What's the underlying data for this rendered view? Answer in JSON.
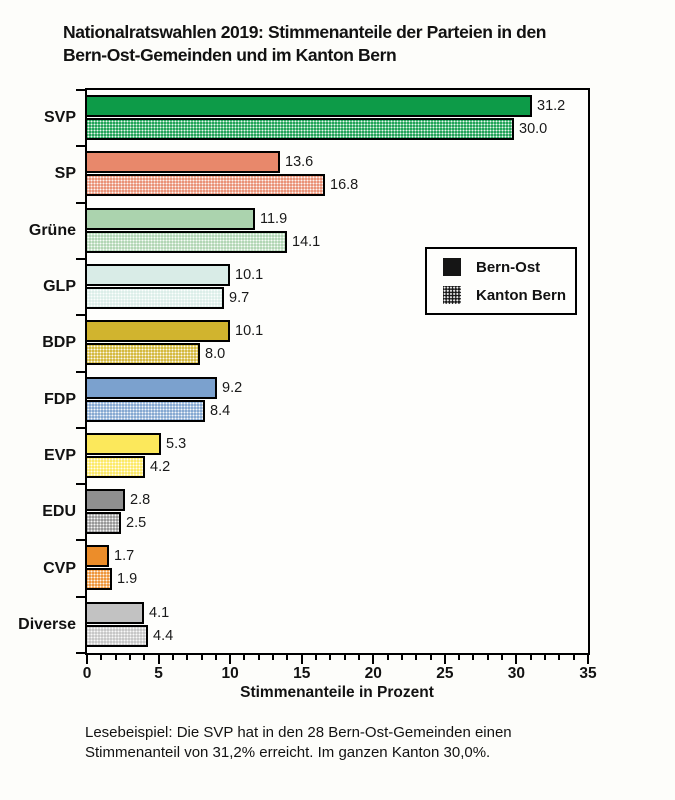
{
  "title_lines": [
    "Nationalratswahlen 2019: Stimmenanteile der Parteien in den",
    "Bern-Ost-Gemeinden und im Kanton Bern"
  ],
  "chart_data": {
    "type": "bar",
    "orientation": "horizontal",
    "title": "Nationalratswahlen 2019: Stimmenanteile der Parteien in den Bern-Ost-Gemeinden und im Kanton Bern",
    "categories": [
      "SVP",
      "SP",
      "Grüne",
      "GLP",
      "BDP",
      "FDP",
      "EVP",
      "EDU",
      "CVP",
      "Diverse"
    ],
    "series": [
      {
        "name": "Bern-Ost",
        "style": "solid",
        "values": [
          31.2,
          13.6,
          11.9,
          10.1,
          10.1,
          9.2,
          5.3,
          2.8,
          1.7,
          4.1
        ]
      },
      {
        "name": "Kanton Bern",
        "style": "dotted",
        "values": [
          30.0,
          16.8,
          14.1,
          9.7,
          8.0,
          8.4,
          4.2,
          2.5,
          1.9,
          4.4
        ]
      }
    ],
    "party_colors": [
      "#0d9b48",
      "#e8886b",
      "#abd3ae",
      "#d9ece7",
      "#d1b42e",
      "#7ba1ce",
      "#fce85b",
      "#8f8f8f",
      "#ec8d2a",
      "#c2c2c2"
    ],
    "xlabel": "Stimmenanteile in Prozent",
    "xlim": [
      0,
      35
    ],
    "x_major_ticks": [
      0,
      5,
      10,
      15,
      20,
      25,
      30,
      35
    ],
    "x_minor_step": 1,
    "grid": false,
    "value_label_decimals": 1,
    "legend_position": "inside-right",
    "bar_border_color": "#000000",
    "frame_color": "#000000"
  },
  "legend": {
    "items": [
      {
        "label": "Bern-Ost",
        "style": "solid"
      },
      {
        "label": "Kanton Bern",
        "style": "dotted"
      }
    ]
  },
  "caption_lines": [
    "Lesebeispiel: Die SVP hat in den 28 Bern-Ost-Gemeinden einen",
    "Stimmenanteil von 31,2% erreicht. Im ganzen Kanton 30,0%."
  ]
}
